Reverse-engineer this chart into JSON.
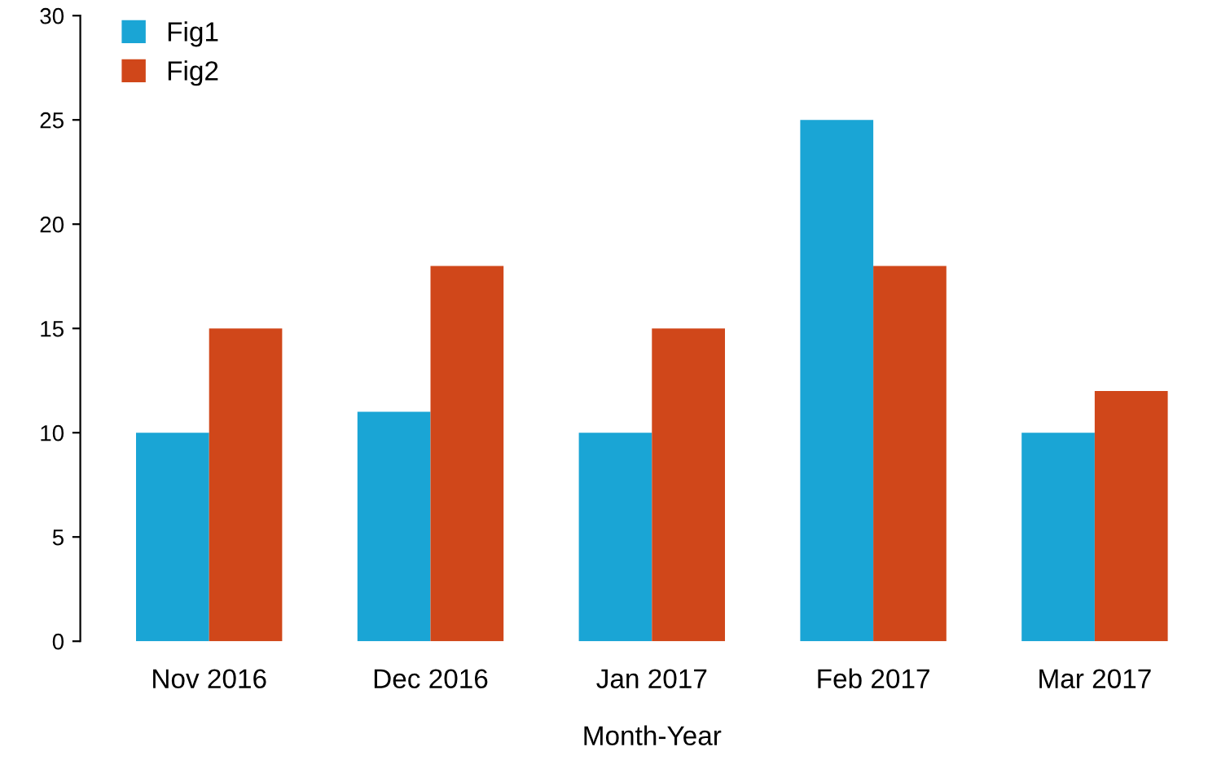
{
  "chart_data": {
    "type": "bar",
    "xlabel": "Month-Year",
    "categories": [
      "Nov 2016",
      "Dec 2016",
      "Jan 2017",
      "Feb 2017",
      "Mar 2017"
    ],
    "series": [
      {
        "name": "Fig1",
        "color": "#1aa5d5",
        "values": [
          10,
          11,
          10,
          25,
          10
        ]
      },
      {
        "name": "Fig2",
        "color": "#d0471a",
        "values": [
          15,
          18,
          15,
          18,
          12
        ]
      }
    ],
    "ylim": [
      0,
      30
    ],
    "yticks": [
      0,
      5,
      10,
      15,
      20,
      25,
      30
    ],
    "grid": false,
    "legend": "top left"
  }
}
